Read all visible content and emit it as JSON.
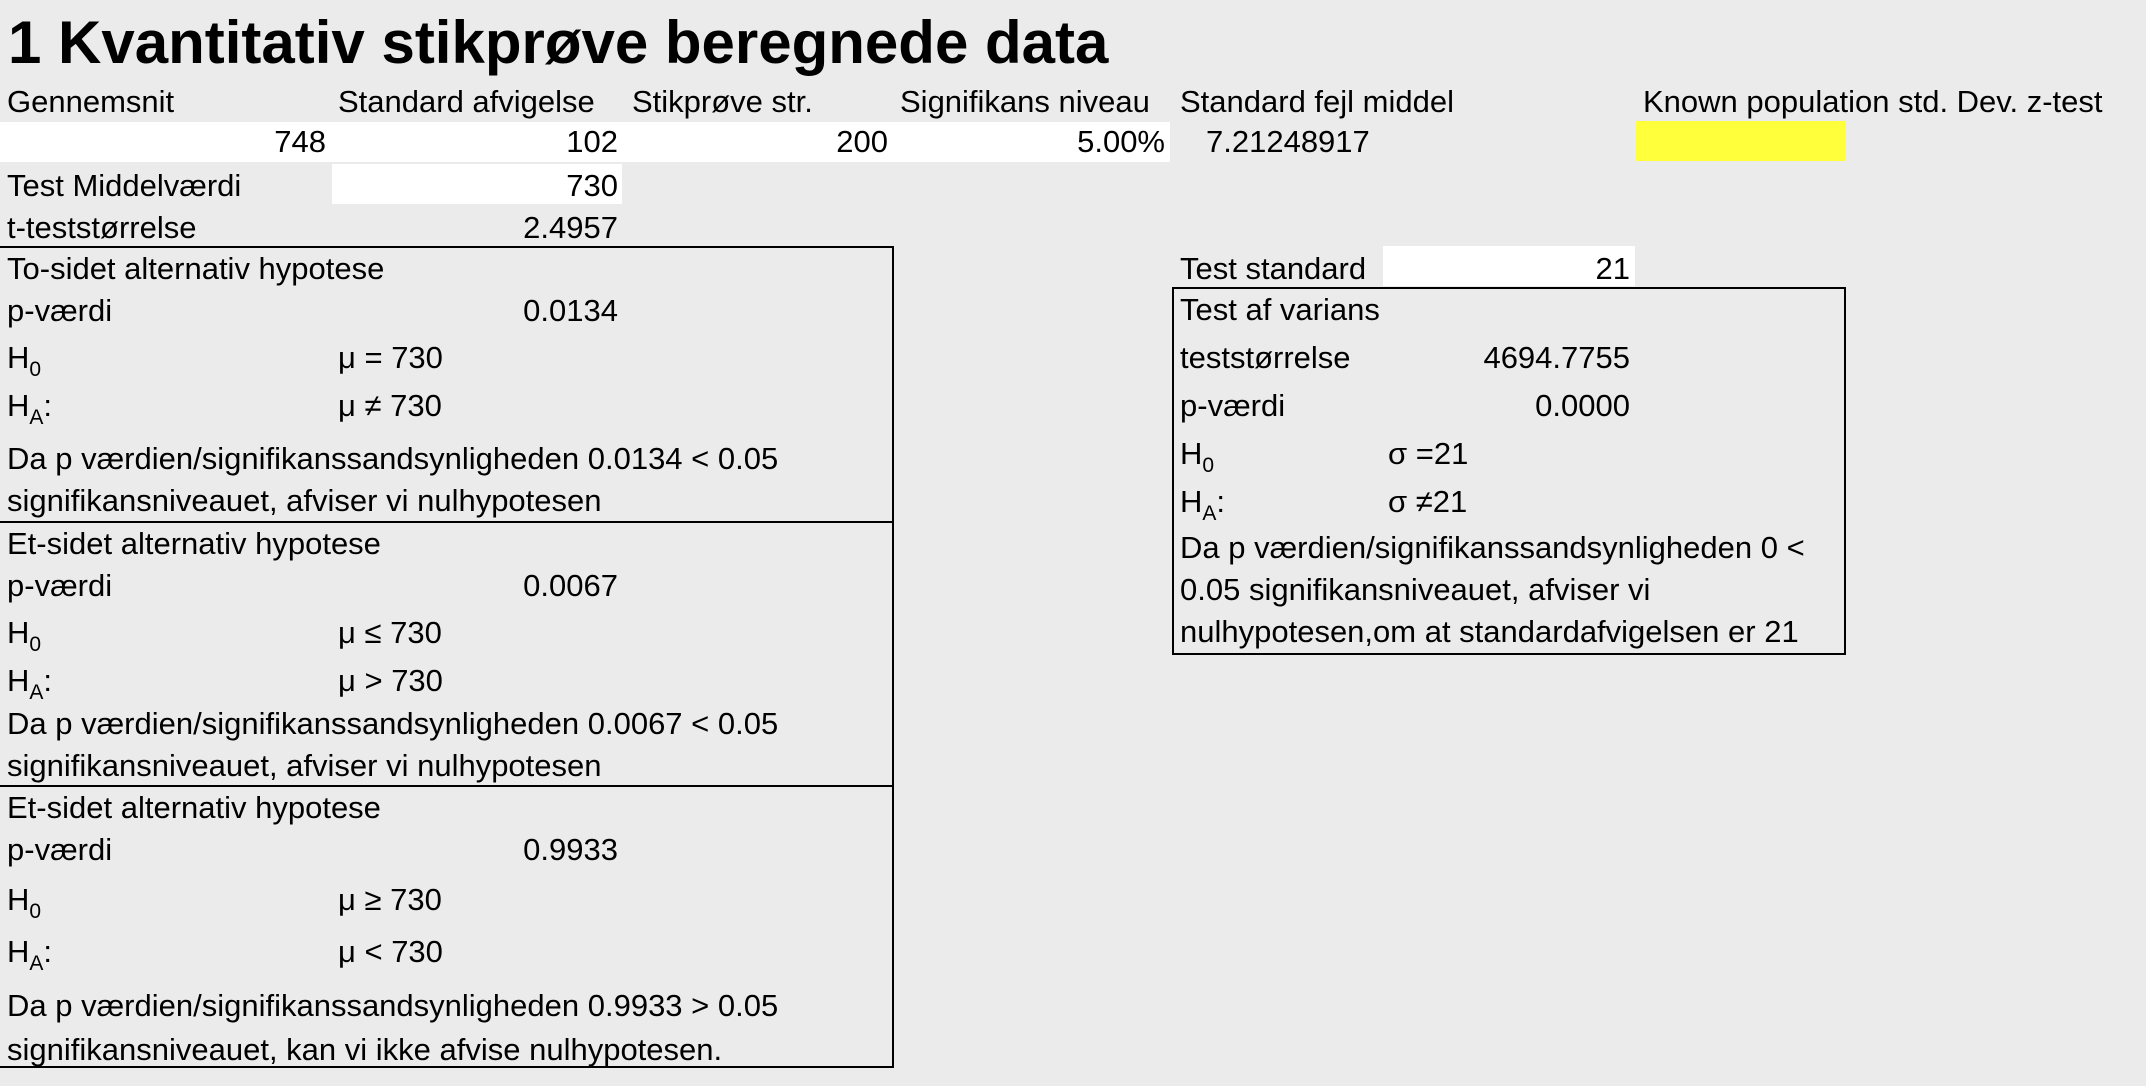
{
  "title": "1 Kvantitativ stikprøve beregnede data",
  "headers": {
    "mean": "Gennemsnit",
    "std_dev": "Standard afvigelse",
    "sample_size": "Stikprøve str.",
    "significance": "Signifikans niveau",
    "std_error": "Standard fejl middel",
    "known_pop": "Known population std. Dev. z-test"
  },
  "values": {
    "mean": "748",
    "std_dev": "102",
    "sample_size": "200",
    "significance": "5.00%",
    "std_error": "7.21248917",
    "known_pop": ""
  },
  "test_mean": {
    "label": "Test Middelværdi",
    "value": "730"
  },
  "t_stat": {
    "label": "t-teststørrelse",
    "value": "2.4957"
  },
  "two_sided": {
    "heading": "To-sidet alternativ hypotese",
    "p_label": "p-værdi",
    "p_value": "0.0134",
    "h0_label": "H",
    "h0_sub": "0",
    "h0_value": "μ = 730",
    "ha_label": "H",
    "ha_sub": "A",
    "ha_suffix": ":",
    "ha_value": "μ ≠ 730",
    "conclusion_1": "Da p værdien/signifikanssandsynligheden 0.0134 < 0.05",
    "conclusion_2": "signifikansniveauet, afviser vi nulhypotesen"
  },
  "one_sided_a": {
    "heading": "Et-sidet alternativ hypotese",
    "p_label": "p-værdi",
    "p_value": "0.0067",
    "h0_label": "H",
    "h0_sub": "0",
    "h0_value": "μ ≤ 730",
    "ha_label": "H",
    "ha_sub": "A",
    "ha_suffix": ":",
    "ha_value": "μ > 730",
    "conclusion_1": "Da p værdien/signifikanssandsynligheden 0.0067 < 0.05",
    "conclusion_2": "signifikansniveauet, afviser vi nulhypotesen"
  },
  "one_sided_b": {
    "heading": "Et-sidet alternativ hypotese",
    "p_label": "p-værdi",
    "p_value": "0.9933",
    "h0_label": "H",
    "h0_sub": "0",
    "h0_value": "μ ≥ 730",
    "ha_label": "H",
    "ha_sub": "A",
    "ha_suffix": ":",
    "ha_value": "μ < 730",
    "conclusion_1": "Da p værdien/signifikanssandsynligheden 0.9933 > 0.05",
    "conclusion_2": "signifikansniveauet, kan vi ikke afvise nulhypotesen."
  },
  "variance": {
    "test_std_label": "Test standard",
    "test_std_value": "21",
    "heading": "Test af varians",
    "stat_label": "teststørrelse",
    "stat_value": "4694.7755",
    "p_label": "p-værdi",
    "p_value": "0.0000",
    "h0_label": "H",
    "h0_sub": "0",
    "h0_value": "σ =21",
    "ha_label": "H",
    "ha_sub": "A",
    "ha_suffix": ":",
    "ha_value": "σ ≠21",
    "conclusion_1": "Da p værdien/signifikanssandsynligheden 0 <",
    "conclusion_2": "0.05 signifikansniveauet, afviser vi",
    "conclusion_3": "nulhypotesen,om at standardafvigelsen er 21"
  },
  "colors": {
    "background": "#ebebeb",
    "input_cell": "#ffffff",
    "highlight_cell": "#ffff3c"
  }
}
